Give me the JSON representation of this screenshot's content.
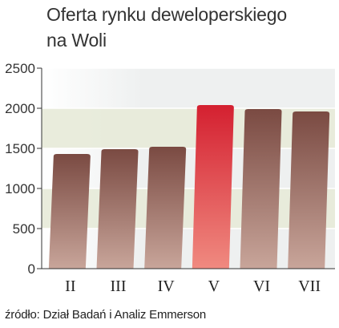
{
  "title_lines": [
    "Oferta rynku deweloperskiego",
    "na Woli"
  ],
  "source": "źródło: Dział Badań i Analiz Emmerson",
  "colors": {
    "bar_top": "#7a4a42",
    "bar_bottom": "#c8a59a",
    "highlight_top": "#d42030",
    "highlight_bottom": "#f08a80",
    "band_fill": "#e7ead8",
    "plot_bg": "#eef0f0"
  },
  "chart_data": {
    "type": "bar",
    "title": "Oferta rynku deweloperskiego na Woli",
    "categories": [
      "II",
      "III",
      "IV",
      "V",
      "VI",
      "VII"
    ],
    "values": [
      1430,
      1490,
      1520,
      2040,
      1990,
      1960
    ],
    "highlight_category": "V",
    "ylim": [
      0,
      2500
    ],
    "yticks": [
      0,
      500,
      1000,
      1500,
      2000,
      2500
    ],
    "grid": true,
    "legend": "none"
  }
}
